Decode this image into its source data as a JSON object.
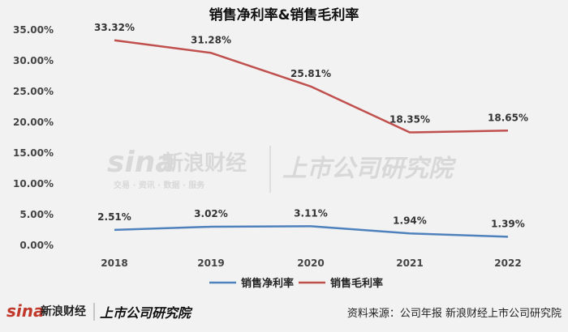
{
  "chart_data": {
    "type": "line",
    "title": "销售净利率&销售毛利率",
    "categories": [
      "2018",
      "2019",
      "2020",
      "2021",
      "2022"
    ],
    "ylim": [
      0,
      35
    ],
    "yticks": [
      "0.00%",
      "5.00%",
      "10.00%",
      "15.00%",
      "20.00%",
      "25.00%",
      "30.00%",
      "35.00%"
    ],
    "grid": false,
    "legend": "bottom",
    "series": [
      {
        "name": "销售净利率",
        "color": "#4f81bd",
        "values": [
          2.51,
          3.02,
          3.11,
          1.94,
          1.39
        ],
        "labels": [
          "2.51%",
          "3.02%",
          "3.11%",
          "1.94%",
          "1.39%"
        ]
      },
      {
        "name": "销售毛利率",
        "color": "#c0504d",
        "values": [
          33.32,
          31.28,
          25.81,
          18.35,
          18.65
        ],
        "labels": [
          "33.32%",
          "31.28%",
          "25.81%",
          "18.35%",
          "18.65%"
        ]
      }
    ]
  },
  "watermark": {
    "sina": "sina",
    "sina_cn": "新浪财经",
    "sina_sub": "交易 · 资讯 · 数据 · 服务",
    "inst": "上市公司研究院"
  },
  "footer": {
    "sina": "sina",
    "sina_cn": "新浪财经",
    "inst": "上市公司研究院",
    "source": "资料来源：公司年报 新浪财经上市公司研究院"
  }
}
